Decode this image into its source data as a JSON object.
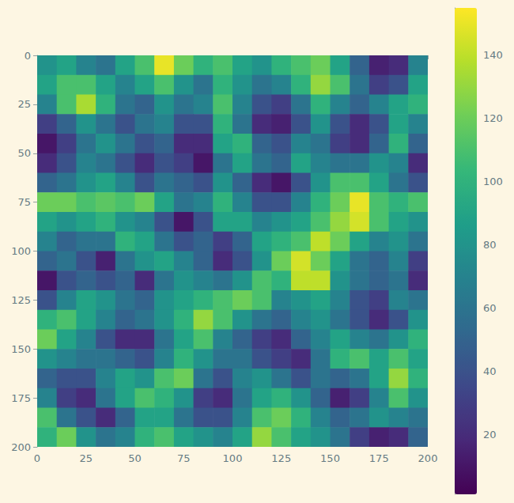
{
  "chart_data": {
    "type": "heatmap",
    "x": [
      5,
      15,
      25,
      35,
      45,
      55,
      65,
      75,
      85,
      95,
      105,
      115,
      125,
      135,
      145,
      155,
      165,
      175,
      185,
      195
    ],
    "y": [
      5,
      15,
      25,
      35,
      45,
      55,
      65,
      75,
      85,
      95,
      105,
      115,
      125,
      135,
      145,
      155,
      165,
      175,
      185,
      195
    ],
    "z": [
      [
        80,
        90,
        70,
        60,
        90,
        110,
        150,
        120,
        100,
        110,
        90,
        80,
        100,
        110,
        120,
        90,
        50,
        15,
        20,
        70
      ],
      [
        90,
        110,
        110,
        90,
        70,
        90,
        110,
        80,
        60,
        100,
        80,
        60,
        70,
        100,
        130,
        110,
        60,
        30,
        40,
        90
      ],
      [
        70,
        110,
        135,
        100,
        60,
        50,
        80,
        60,
        70,
        110,
        70,
        40,
        30,
        60,
        100,
        70,
        50,
        70,
        90,
        100
      ],
      [
        30,
        50,
        80,
        60,
        40,
        60,
        70,
        40,
        40,
        100,
        60,
        20,
        15,
        40,
        80,
        40,
        20,
        40,
        90,
        70
      ],
      [
        10,
        30,
        60,
        80,
        60,
        40,
        50,
        20,
        20,
        90,
        100,
        50,
        40,
        70,
        60,
        30,
        20,
        50,
        100,
        50
      ],
      [
        20,
        40,
        70,
        60,
        40,
        20,
        40,
        30,
        10,
        60,
        90,
        60,
        50,
        90,
        70,
        60,
        60,
        80,
        70,
        20
      ],
      [
        50,
        60,
        80,
        90,
        70,
        40,
        60,
        50,
        40,
        80,
        50,
        20,
        10,
        40,
        80,
        110,
        110,
        90,
        60,
        40
      ],
      [
        120,
        120,
        110,
        115,
        110,
        120,
        90,
        60,
        70,
        100,
        70,
        40,
        40,
        70,
        100,
        120,
        150,
        110,
        100,
        110
      ],
      [
        90,
        80,
        90,
        100,
        80,
        70,
        40,
        10,
        40,
        90,
        90,
        70,
        80,
        90,
        110,
        130,
        145,
        110,
        90,
        80
      ],
      [
        70,
        50,
        60,
        60,
        100,
        90,
        60,
        40,
        50,
        30,
        50,
        90,
        100,
        110,
        140,
        120,
        90,
        70,
        80,
        60
      ],
      [
        50,
        60,
        40,
        15,
        60,
        80,
        90,
        70,
        50,
        20,
        40,
        80,
        120,
        145,
        120,
        90,
        60,
        50,
        70,
        30
      ],
      [
        10,
        40,
        50,
        40,
        50,
        20,
        60,
        80,
        70,
        60,
        80,
        110,
        100,
        140,
        140,
        80,
        60,
        50,
        60,
        20
      ],
      [
        40,
        70,
        90,
        80,
        60,
        50,
        80,
        90,
        100,
        110,
        120,
        110,
        70,
        80,
        90,
        70,
        40,
        30,
        70,
        60
      ],
      [
        100,
        110,
        90,
        70,
        50,
        60,
        80,
        100,
        130,
        110,
        80,
        60,
        50,
        70,
        80,
        60,
        40,
        20,
        40,
        80
      ],
      [
        120,
        90,
        70,
        40,
        20,
        20,
        60,
        90,
        110,
        70,
        50,
        30,
        20,
        50,
        70,
        90,
        70,
        60,
        80,
        100
      ],
      [
        80,
        70,
        60,
        60,
        50,
        40,
        70,
        100,
        80,
        60,
        60,
        40,
        30,
        20,
        60,
        100,
        110,
        90,
        110,
        90
      ],
      [
        50,
        40,
        40,
        70,
        90,
        80,
        110,
        120,
        60,
        40,
        70,
        80,
        60,
        40,
        60,
        50,
        60,
        90,
        130,
        100
      ],
      [
        70,
        30,
        20,
        60,
        90,
        110,
        100,
        80,
        30,
        20,
        60,
        90,
        100,
        80,
        50,
        15,
        30,
        70,
        110,
        80
      ],
      [
        110,
        60,
        40,
        20,
        50,
        90,
        90,
        60,
        40,
        40,
        70,
        110,
        120,
        100,
        70,
        50,
        60,
        80,
        70,
        60
      ],
      [
        100,
        120,
        80,
        60,
        70,
        100,
        110,
        90,
        80,
        70,
        90,
        130,
        110,
        90,
        80,
        60,
        30,
        15,
        20,
        50
      ]
    ],
    "xlim": [
      0,
      200
    ],
    "xticks": [
      0,
      25,
      50,
      75,
      100,
      125,
      150,
      175,
      200
    ],
    "ylim": [
      200,
      0
    ],
    "yticks": [
      0,
      25,
      50,
      75,
      100,
      125,
      150,
      175,
      200
    ],
    "colorbar": {
      "range": [
        1,
        155
      ],
      "ticks": [
        20,
        40,
        60,
        80,
        100,
        120,
        140
      ]
    },
    "grid": false
  }
}
